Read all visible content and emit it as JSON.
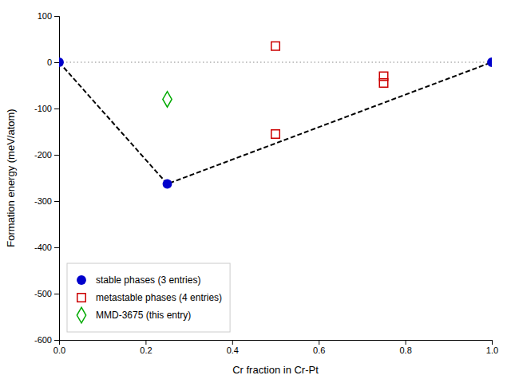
{
  "chart_data": {
    "type": "scatter",
    "xlabel": "Cr fraction in Cr-Pt",
    "ylabel": "Formation energy (meV/atom)",
    "xlim": [
      0.0,
      1.0
    ],
    "ylim": [
      -600,
      100
    ],
    "xticks": [
      {
        "value": 0.0,
        "label": "0.0"
      },
      0.2,
      0.4,
      0.6,
      0.8,
      {
        "value": 1.0,
        "label": "1.0"
      }
    ],
    "yticks": [
      100,
      0,
      -100,
      -200,
      -300,
      -400,
      -500,
      -600
    ],
    "grid": false,
    "legend": "lower left",
    "hlines": [
      {
        "value": 0,
        "color": "#888888",
        "line_style": "dotted"
      }
    ],
    "series": [
      {
        "name": "stable phases (3 entries)",
        "type": "scatter",
        "color": "#0000cc",
        "marker": "circle",
        "x": [
          0.0,
          0.25,
          1.0
        ],
        "values": [
          0.0,
          -263.0,
          0.0
        ]
      },
      {
        "name": "metastable phases (4 entries)",
        "type": "scatter",
        "color": "#cc0000",
        "marker": "open-square",
        "x": [
          0.5,
          0.75,
          0.5,
          0.75
        ],
        "values": [
          35.0,
          -30.0,
          -155.0,
          -45.0
        ]
      },
      {
        "name": "MMD-3675 (this entry)",
        "type": "scatter",
        "color": "#00aa00",
        "marker": "open-diamond",
        "x": [
          0.25
        ],
        "values": [
          -80.0
        ]
      },
      {
        "type": "line",
        "color": "#000000",
        "line_style": "dashed",
        "x": [
          0.0,
          0.25,
          1.0
        ],
        "values": [
          0.0,
          -263.0,
          0.0
        ]
      }
    ]
  }
}
